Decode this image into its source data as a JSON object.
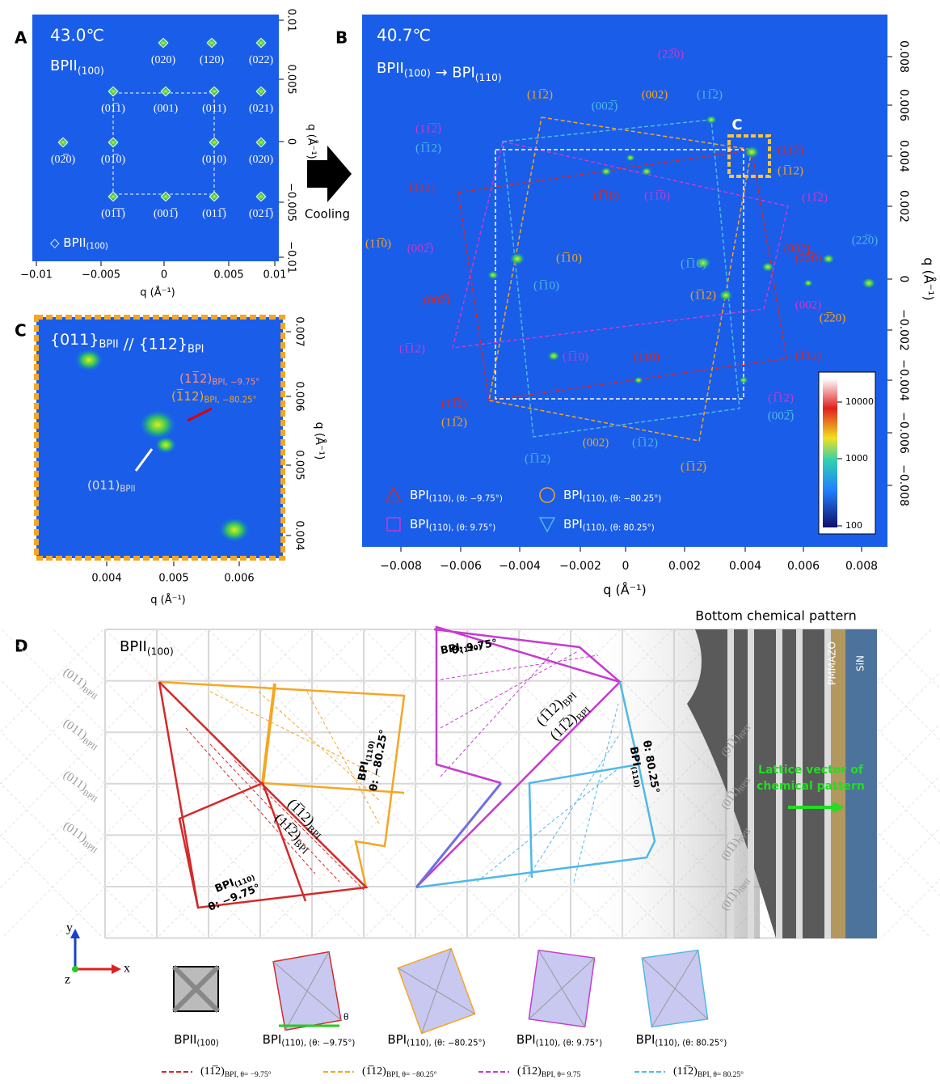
{
  "panels": {
    "A": {
      "label": "A",
      "temperature": "43.0℃",
      "phase": {
        "t": "BPII",
        "sub": "(100)"
      },
      "spots": [
        "(020)",
        "(120)",
        "(022)",
        "(01̅1)",
        "(001)",
        "(011)",
        "(021)",
        "(02̅0)",
        "(01̅0)",
        "(010)",
        "(020)",
        "(01̅1̅)",
        "(001̅)",
        "(011̅)",
        "(021̅)"
      ],
      "legend": {
        "t": "◇ BPII",
        "sub": "(100)"
      },
      "xticks": [
        "−0.01",
        "−0.005",
        "0",
        "0.005",
        "0.01"
      ],
      "yticks": [
        "0.01",
        "0.005",
        "0",
        "−0.005",
        "−0.01"
      ],
      "xlabel": "q (Å⁻¹)",
      "ylabel": "q (Å⁻¹)"
    },
    "arrow": "Cooling",
    "B": {
      "label": "B",
      "temperature": "40.7℃",
      "transition": [
        {
          "t": "BPII",
          "sub": "(100)"
        },
        {
          "t": " → BPI",
          "sub": "(110)"
        }
      ],
      "inset": "C",
      "labels": [
        "(22̅0)",
        "(11̅2)",
        "(002)",
        "(002̅)",
        "(11̅2)",
        "(11̅2̅)",
        "(1̅12)",
        "(11̅2̅)",
        "(1̅12)",
        "(11̅2̅)",
        "(1̅10)",
        "(11̅0)",
        "(11̅2)",
        "(22̅0)",
        "(002̅)",
        "(11̅0)",
        "(1̅10)",
        "(002)",
        "(22̅0)",
        "(1̅10)",
        "(1̅10)",
        "(002̅)",
        "(002)",
        "(2̅20)",
        "(1̅12)",
        "(1̅10)",
        "(1̅10)",
        "(1̅12)",
        "(1̅12)",
        "(11̅2)",
        "(11̅2)",
        "(1̅12)",
        "(002̅)",
        "(002)",
        "(1̅12)",
        "(1̅12)",
        "(1̅12̅)"
      ],
      "legend": [
        {
          "t": "BPI",
          "sub": "(110), (θ: −9.75°)"
        },
        {
          "t": "BPI",
          "sub": "(110), (θ: −80.25°)"
        },
        {
          "t": "BPI",
          "sub": "(110), (θ: 9.75°)"
        },
        {
          "t": "BPI",
          "sub": "(110), (θ: 80.25°)"
        }
      ],
      "colorbar": [
        "10000",
        "1000",
        "100"
      ],
      "xticks": [
        "−0.008",
        "−0.006",
        "−0.004",
        "−0.002",
        "0",
        "0.002",
        "0.004",
        "0.006",
        "0.008"
      ],
      "yticks": [
        "0.008",
        "0.006",
        "0.004",
        "0.002",
        "0",
        "−0.002",
        "−0.004",
        "−0.006",
        "−0.008"
      ],
      "xlabel": "q (Å⁻¹)",
      "ylabel": "q (Å⁻¹)"
    },
    "C": {
      "label": "C",
      "title": [
        {
          "t": "{011}",
          "sub": "BPII"
        },
        {
          "t": " // {112}",
          "sub": "BPI"
        }
      ],
      "notes": [
        {
          "t": "(11̅2)",
          "sub": "BPI, −9.75°"
        },
        {
          "t": "(1̅12)",
          "sub": "BPI, −80.25°"
        },
        {
          "t": "(011)",
          "sub": "BPII"
        }
      ],
      "xticks": [
        "0.004",
        "0.005",
        "0.006"
      ],
      "yticks": [
        "0.007",
        "0.006",
        "0.005",
        "0.004"
      ],
      "xlabel": "q (Å⁻¹)",
      "ylabel": "q (Å⁻¹)"
    },
    "D": {
      "label": "D",
      "phase": {
        "t": "BPII",
        "sub": "(100)"
      },
      "pattern_title": "Bottom chemical pattern",
      "left_planes": [
        {
          "t": "(011)",
          "sub": "BPII"
        },
        {
          "t": "(011)",
          "sub": "BPII"
        },
        {
          "t": "(011)",
          "sub": "BPII"
        },
        {
          "t": "(011)",
          "sub": "BPII"
        }
      ],
      "right_planes": [
        {
          "t": "(01̅1)",
          "sub": "BPII"
        },
        {
          "t": "(01̅1)",
          "sub": "BPII"
        },
        {
          "t": "(01̅1)",
          "sub": "BPII"
        },
        {
          "t": "(01̅1)",
          "sub": "BPII"
        }
      ],
      "materials": [
        "PMMAZO",
        "SiN"
      ],
      "lattice_vector": [
        "Lattice vector of",
        "chemical pattern"
      ],
      "domains": [
        [
          {
            "t": "BPI",
            "sub": "(110)"
          },
          "θ: −9.75°"
        ],
        [
          {
            "t": "BPI",
            "sub": "(110)"
          },
          "θ: −80.25°"
        ],
        [
          {
            "t": "BPI",
            "sub": "(110)"
          },
          "θ: 9.75°"
        ],
        [
          {
            "t": "BPI",
            "sub": "(110)"
          },
          "θ: 80.25°"
        ]
      ],
      "planes": [
        {
          "t": "(1̅12)",
          "sub": "BPI"
        },
        {
          "t": "(11̅2)",
          "sub": "BPI"
        },
        {
          "t": "(1̅12)",
          "sub": "BPI"
        },
        {
          "t": "(11̅2)",
          "sub": "BPI"
        }
      ],
      "axes": [
        "y",
        "x",
        "z",
        "θ"
      ],
      "icons": [
        {
          "t": "BPII",
          "sub": "(100)"
        },
        {
          "t": "BPI",
          "sub": "(110), (θ: −9.75°)"
        },
        {
          "t": "BPI",
          "sub": "(110), (θ: −80.25°)"
        },
        {
          "t": "BPI",
          "sub": "(110), (θ: 9.75°)"
        },
        {
          "t": "BPI",
          "sub": "(110), (θ: 80.25°)"
        }
      ],
      "lines": [
        {
          "t": "(11̅2)",
          "sub": "BPI, θ= −9.75°"
        },
        {
          "t": "(1̅12)",
          "sub": "BPI, θ= −80.25°"
        },
        {
          "t": "(1̅12)",
          "sub": "BPI, θ= 9.75"
        },
        {
          "t": "(11̅2)",
          "sub": "BPI, θ= 80.25°"
        }
      ]
    }
  }
}
